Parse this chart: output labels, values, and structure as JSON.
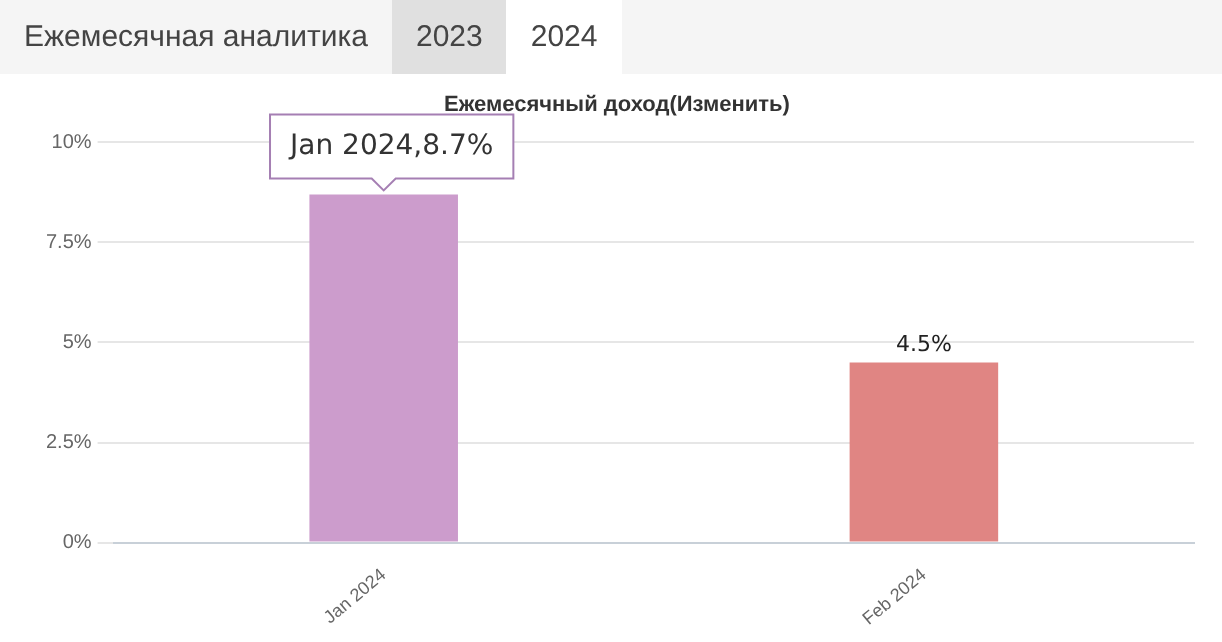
{
  "chart_data": {
    "type": "bar",
    "title": "Ежемесячный доход(Изменить)",
    "categories": [
      "Jan 2024",
      "Feb 2024"
    ],
    "values": [
      8.7,
      4.5
    ],
    "colors": [
      "#cc9ccc",
      "#e08583"
    ],
    "value_labels": [
      null,
      "4.5%"
    ],
    "ylim": [
      0,
      10
    ],
    "yticks": [
      {
        "value": 0,
        "label": "0%"
      },
      {
        "value": 2.5,
        "label": "2.5%"
      },
      {
        "value": 5,
        "label": "5%"
      },
      {
        "value": 7.5,
        "label": "7.5%"
      },
      {
        "value": 10,
        "label": "10%"
      }
    ],
    "grid": "y",
    "legend": false,
    "annotations": [
      "Ежемесячная аналитика",
      "2023",
      "2024",
      {
        "text": "Jan 2024,8.7%",
        "x": "Jan 2024",
        "y": 8.7
      }
    ]
  }
}
